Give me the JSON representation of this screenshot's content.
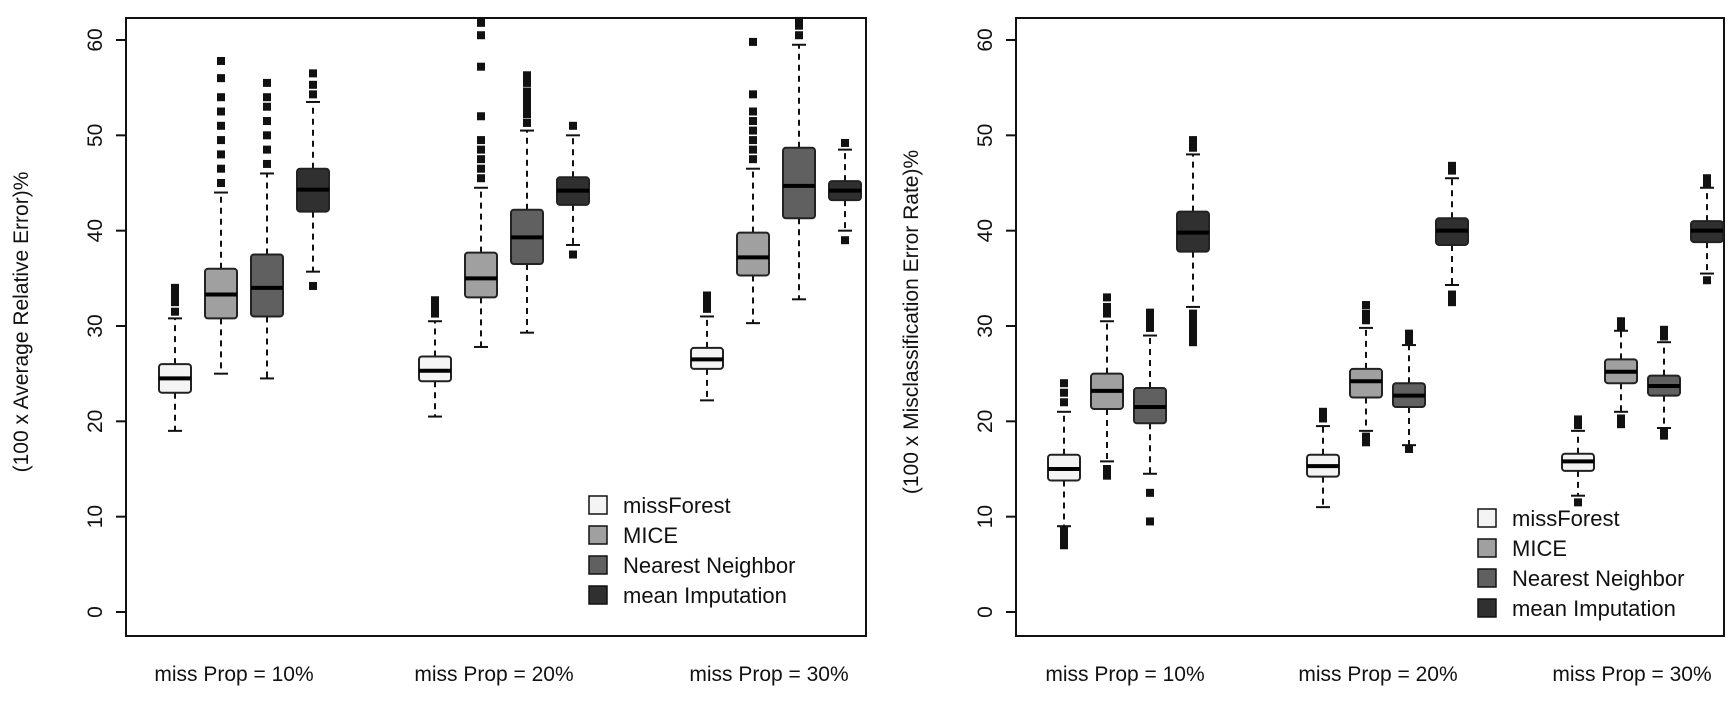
{
  "chart_data": [
    {
      "type": "boxplot",
      "title": "",
      "xlabel": "",
      "ylabel": "(100 x Average Relative Error)%",
      "ylim": [
        0,
        62
      ],
      "yticks": [
        0,
        10,
        20,
        30,
        40,
        50,
        60
      ],
      "categories": [
        "miss Prop = 10%",
        "miss Prop = 20%",
        "miss Prop = 30%"
      ],
      "legend_position": "bottom-right",
      "grid": false,
      "series": [
        {
          "name": "missForest",
          "color": "#f4f4f4",
          "boxes": [
            {
              "whisker_low": 19.0,
              "q1": 23.0,
              "median": 24.5,
              "q3": 26.0,
              "whisker_high": 30.8,
              "outliers": [
                31.5,
                32.5,
                33.3,
                34.0
              ]
            },
            {
              "whisker_low": 20.5,
              "q1": 24.2,
              "median": 25.3,
              "q3": 26.8,
              "whisker_high": 30.5,
              "outliers": [
                31.3,
                32.0,
                32.7
              ]
            },
            {
              "whisker_low": 22.2,
              "q1": 25.5,
              "median": 26.5,
              "q3": 27.7,
              "whisker_high": 31.0,
              "outliers": [
                31.8,
                32.5,
                33.2
              ]
            }
          ]
        },
        {
          "name": "MICE",
          "color": "#a0a0a0",
          "boxes": [
            {
              "whisker_low": 25.0,
              "q1": 30.8,
              "median": 33.3,
              "q3": 36.0,
              "whisker_high": 44.0,
              "outliers": [
                45.0,
                46.5,
                48.0,
                49.5,
                51.0,
                52.5,
                54.0,
                56.0,
                57.8
              ]
            },
            {
              "whisker_low": 27.8,
              "q1": 33.0,
              "median": 35.0,
              "q3": 37.7,
              "whisker_high": 44.5,
              "outliers": [
                45.5,
                46.5,
                47.5,
                48.5,
                49.5,
                52.0,
                57.2,
                60.5,
                61.8
              ]
            },
            {
              "whisker_low": 30.3,
              "q1": 35.3,
              "median": 37.2,
              "q3": 39.8,
              "whisker_high": 46.5,
              "outliers": [
                47.5,
                48.5,
                49.5,
                50.5,
                51.5,
                52.5,
                54.3,
                59.8
              ]
            }
          ]
        },
        {
          "name": "Nearest Neighbor",
          "color": "#606060",
          "boxes": [
            {
              "whisker_low": 24.5,
              "q1": 31.0,
              "median": 34.0,
              "q3": 37.5,
              "whisker_high": 46.0,
              "outliers": [
                47.0,
                48.5,
                50.0,
                51.5,
                53.0,
                54.0,
                55.5
              ]
            },
            {
              "whisker_low": 29.3,
              "q1": 36.5,
              "median": 39.3,
              "q3": 42.2,
              "whisker_high": 50.5,
              "outliers": [
                51.3,
                52.2,
                53.0,
                53.8,
                54.6,
                55.5,
                56.3
              ]
            },
            {
              "whisker_low": 32.8,
              "q1": 41.3,
              "median": 44.7,
              "q3": 48.7,
              "whisker_high": 59.5,
              "outliers": [
                60.5,
                61.5,
                62.0
              ]
            }
          ]
        },
        {
          "name": "mean Imputation",
          "color": "#303030",
          "boxes": [
            {
              "whisker_low": 35.7,
              "q1": 42.0,
              "median": 44.3,
              "q3": 46.5,
              "whisker_high": 53.5,
              "outliers": [
                34.2,
                54.3,
                55.3,
                56.5
              ]
            },
            {
              "whisker_low": 38.5,
              "q1": 42.7,
              "median": 44.2,
              "q3": 45.6,
              "whisker_high": 50.0,
              "outliers": [
                37.5,
                51.0
              ]
            },
            {
              "whisker_low": 40.0,
              "q1": 43.2,
              "median": 44.2,
              "q3": 45.2,
              "whisker_high": 48.5,
              "outliers": [
                39.0,
                49.2
              ]
            }
          ]
        }
      ]
    },
    {
      "type": "boxplot",
      "title": "",
      "xlabel": "",
      "ylabel": "(100 x Misclassification Error Rate)%",
      "ylim": [
        0,
        62
      ],
      "yticks": [
        0,
        10,
        20,
        30,
        40,
        50,
        60
      ],
      "categories": [
        "miss Prop = 10%",
        "miss Prop = 20%",
        "miss Prop = 30%"
      ],
      "legend_position": "bottom-right",
      "grid": false,
      "series": [
        {
          "name": "missForest",
          "color": "#f4f4f4",
          "boxes": [
            {
              "whisker_low": 9.0,
              "q1": 13.8,
              "median": 15.0,
              "q3": 16.5,
              "whisker_high": 21.0,
              "outliers": [
                7.0,
                7.8,
                8.5,
                22.0,
                23.0,
                24.0
              ]
            },
            {
              "whisker_low": 11.0,
              "q1": 14.2,
              "median": 15.3,
              "q3": 16.5,
              "whisker_high": 19.5,
              "outliers": [
                20.3,
                21.0
              ]
            },
            {
              "whisker_low": 12.2,
              "q1": 14.8,
              "median": 15.8,
              "q3": 16.6,
              "whisker_high": 19.0,
              "outliers": [
                11.5,
                19.6,
                20.2
              ]
            }
          ]
        },
        {
          "name": "MICE",
          "color": "#a0a0a0",
          "boxes": [
            {
              "whisker_low": 15.8,
              "q1": 21.3,
              "median": 23.2,
              "q3": 25.0,
              "whisker_high": 30.5,
              "outliers": [
                14.3,
                15.0,
                31.3,
                32.0,
                33.0
              ]
            },
            {
              "whisker_low": 19.0,
              "q1": 22.5,
              "median": 24.2,
              "q3": 25.5,
              "whisker_high": 29.8,
              "outliers": [
                17.8,
                18.4,
                30.6,
                31.3,
                32.2
              ]
            },
            {
              "whisker_low": 21.0,
              "q1": 24.0,
              "median": 25.2,
              "q3": 26.5,
              "whisker_high": 29.5,
              "outliers": [
                19.7,
                20.3,
                30.0,
                30.5
              ]
            }
          ]
        },
        {
          "name": "Nearest Neighbor",
          "color": "#606060",
          "boxes": [
            {
              "whisker_low": 14.5,
              "q1": 19.8,
              "median": 21.5,
              "q3": 23.5,
              "whisker_high": 29.0,
              "outliers": [
                9.5,
                12.5,
                29.8,
                30.6,
                31.4
              ]
            },
            {
              "whisker_low": 17.5,
              "q1": 21.5,
              "median": 22.7,
              "q3": 24.0,
              "whisker_high": 28.0,
              "outliers": [
                17.1,
                28.5,
                29.2
              ]
            },
            {
              "whisker_low": 19.3,
              "q1": 22.7,
              "median": 23.7,
              "q3": 24.8,
              "whisker_high": 28.3,
              "outliers": [
                18.5,
                18.9,
                28.9,
                29.6
              ]
            }
          ]
        },
        {
          "name": "mean Imputation",
          "color": "#303030",
          "boxes": [
            {
              "whisker_low": 32.0,
              "q1": 37.8,
              "median": 39.8,
              "q3": 42.0,
              "whisker_high": 48.0,
              "outliers": [
                28.3,
                29.0,
                29.8,
                30.6,
                31.3,
                48.7,
                49.5
              ]
            },
            {
              "whisker_low": 34.3,
              "q1": 38.5,
              "median": 40.0,
              "q3": 41.3,
              "whisker_high": 45.5,
              "outliers": [
                32.5,
                33.3,
                46.3,
                46.8
              ]
            },
            {
              "whisker_low": 35.5,
              "q1": 38.8,
              "median": 40.0,
              "q3": 41.0,
              "whisker_high": 44.5,
              "outliers": [
                34.8,
                45.0,
                45.5
              ]
            }
          ]
        }
      ]
    }
  ]
}
